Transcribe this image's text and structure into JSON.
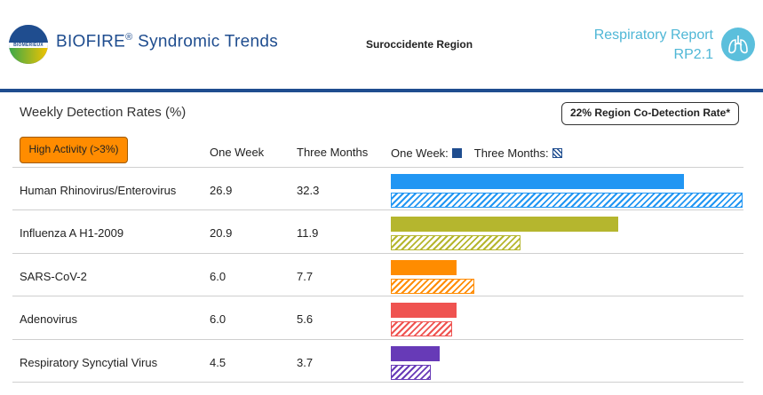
{
  "header": {
    "logo_text": "BIOMÉRIEUX",
    "brand": "BIOFIRE",
    "brand_mark": "®",
    "brand_suffix": " Syndromic Trends",
    "region": "Suroccidente Region",
    "report_line1": "Respiratory Report",
    "report_line2": "RP2.1",
    "report_icon": "lungs-icon"
  },
  "section": {
    "title": "Weekly Detection Rates (%)",
    "codetection": "22% Region Co-Detection Rate*",
    "badge": "High Activity (>3%)"
  },
  "columns": {
    "one_week": "One Week",
    "three_months": "Three Months"
  },
  "legend": {
    "one_week": "One Week:",
    "three_months": "Three Months:"
  },
  "chart_data": {
    "type": "bar",
    "categories": [
      "Human Rhinovirus/Enterovirus",
      "Influenza A H1-2009",
      "SARS-CoV-2",
      "Adenovirus",
      "Respiratory Syncytial Virus"
    ],
    "series": [
      {
        "name": "One Week",
        "values": [
          26.9,
          20.9,
          6.0,
          6.0,
          4.5
        ]
      },
      {
        "name": "Three Months",
        "values": [
          32.3,
          11.9,
          7.7,
          5.6,
          3.7
        ]
      }
    ],
    "colors": [
      "#2196f3",
      "#b5b62e",
      "#ff8c00",
      "#ef5350",
      "#673ab7"
    ]
  },
  "rows": [
    {
      "name": "Human Rhinovirus/Enterovirus",
      "one_week": "26.9",
      "three_months": "32.3"
    },
    {
      "name": "Influenza A H1-2009",
      "one_week": "20.9",
      "three_months": "11.9"
    },
    {
      "name": "SARS-CoV-2",
      "one_week": "6.0",
      "three_months": "7.7"
    },
    {
      "name": "Adenovirus",
      "one_week": "6.0",
      "three_months": "5.6"
    },
    {
      "name": "Respiratory Syncytial Virus",
      "one_week": "4.5",
      "three_months": "3.7"
    }
  ]
}
